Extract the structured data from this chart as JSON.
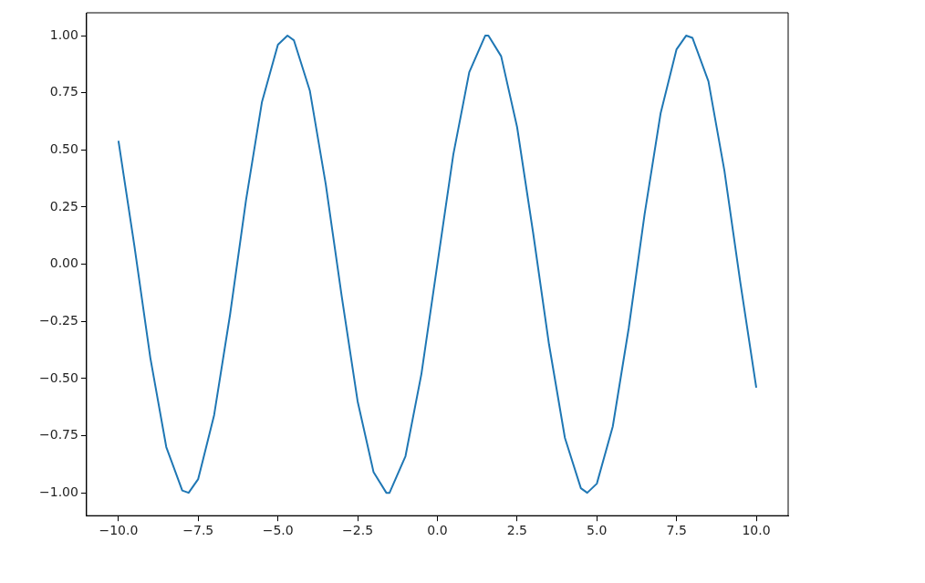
{
  "chart_data": {
    "type": "line",
    "x": [
      -10,
      -9.5,
      -9,
      -8.5,
      -8,
      -7.8,
      -7.5,
      -7,
      -6.5,
      -6,
      -5.5,
      -5,
      -4.7,
      -4.5,
      -4,
      -3.5,
      -3,
      -2.5,
      -2,
      -1.6,
      -1.5,
      -1,
      -0.5,
      0,
      0.5,
      1,
      1.5,
      1.6,
      2,
      2.5,
      3,
      3.5,
      4,
      4.5,
      4.7,
      5,
      5.5,
      6,
      6.5,
      7,
      7.5,
      7.8,
      8,
      8.5,
      9,
      9.5,
      10
    ],
    "series": [
      {
        "color": "#1f77b4",
        "values": [
          0.54,
          0.08,
          -0.41,
          -0.8,
          -0.99,
          -1.0,
          -0.94,
          -0.66,
          -0.22,
          0.28,
          0.71,
          0.96,
          1.0,
          0.98,
          0.76,
          0.35,
          -0.14,
          -0.6,
          -0.91,
          -1.0,
          -1.0,
          -0.84,
          -0.48,
          0.0,
          0.48,
          0.84,
          1.0,
          1.0,
          0.91,
          0.6,
          0.14,
          -0.35,
          -0.76,
          -0.98,
          -1.0,
          -0.96,
          -0.71,
          -0.28,
          0.22,
          0.66,
          0.94,
          1.0,
          0.99,
          0.8,
          0.41,
          -0.08,
          -0.54
        ]
      }
    ],
    "xlim": [
      -11,
      11
    ],
    "ylim": [
      -1.1,
      1.1
    ],
    "xticks": [
      {
        "value": -10,
        "label": "−10.0"
      },
      {
        "value": -7.5,
        "label": "−7.5"
      },
      {
        "value": -5,
        "label": "−5.0"
      },
      {
        "value": -2.5,
        "label": "−2.5"
      },
      {
        "value": 0,
        "label": "0.0"
      },
      {
        "value": 2.5,
        "label": "2.5"
      },
      {
        "value": 5,
        "label": "5.0"
      },
      {
        "value": 7.5,
        "label": "7.5"
      },
      {
        "value": 10,
        "label": "10.0"
      }
    ],
    "yticks": [
      {
        "value": -1,
        "label": "−1.00"
      },
      {
        "value": -0.75,
        "label": "−0.75"
      },
      {
        "value": -0.5,
        "label": "−0.50"
      },
      {
        "value": -0.25,
        "label": "−0.25"
      },
      {
        "value": 0,
        "label": "0.00"
      },
      {
        "value": 0.25,
        "label": "0.25"
      },
      {
        "value": 0.5,
        "label": "0.50"
      },
      {
        "value": 0.75,
        "label": "0.75"
      },
      {
        "value": 1,
        "label": "1.00"
      }
    ]
  }
}
